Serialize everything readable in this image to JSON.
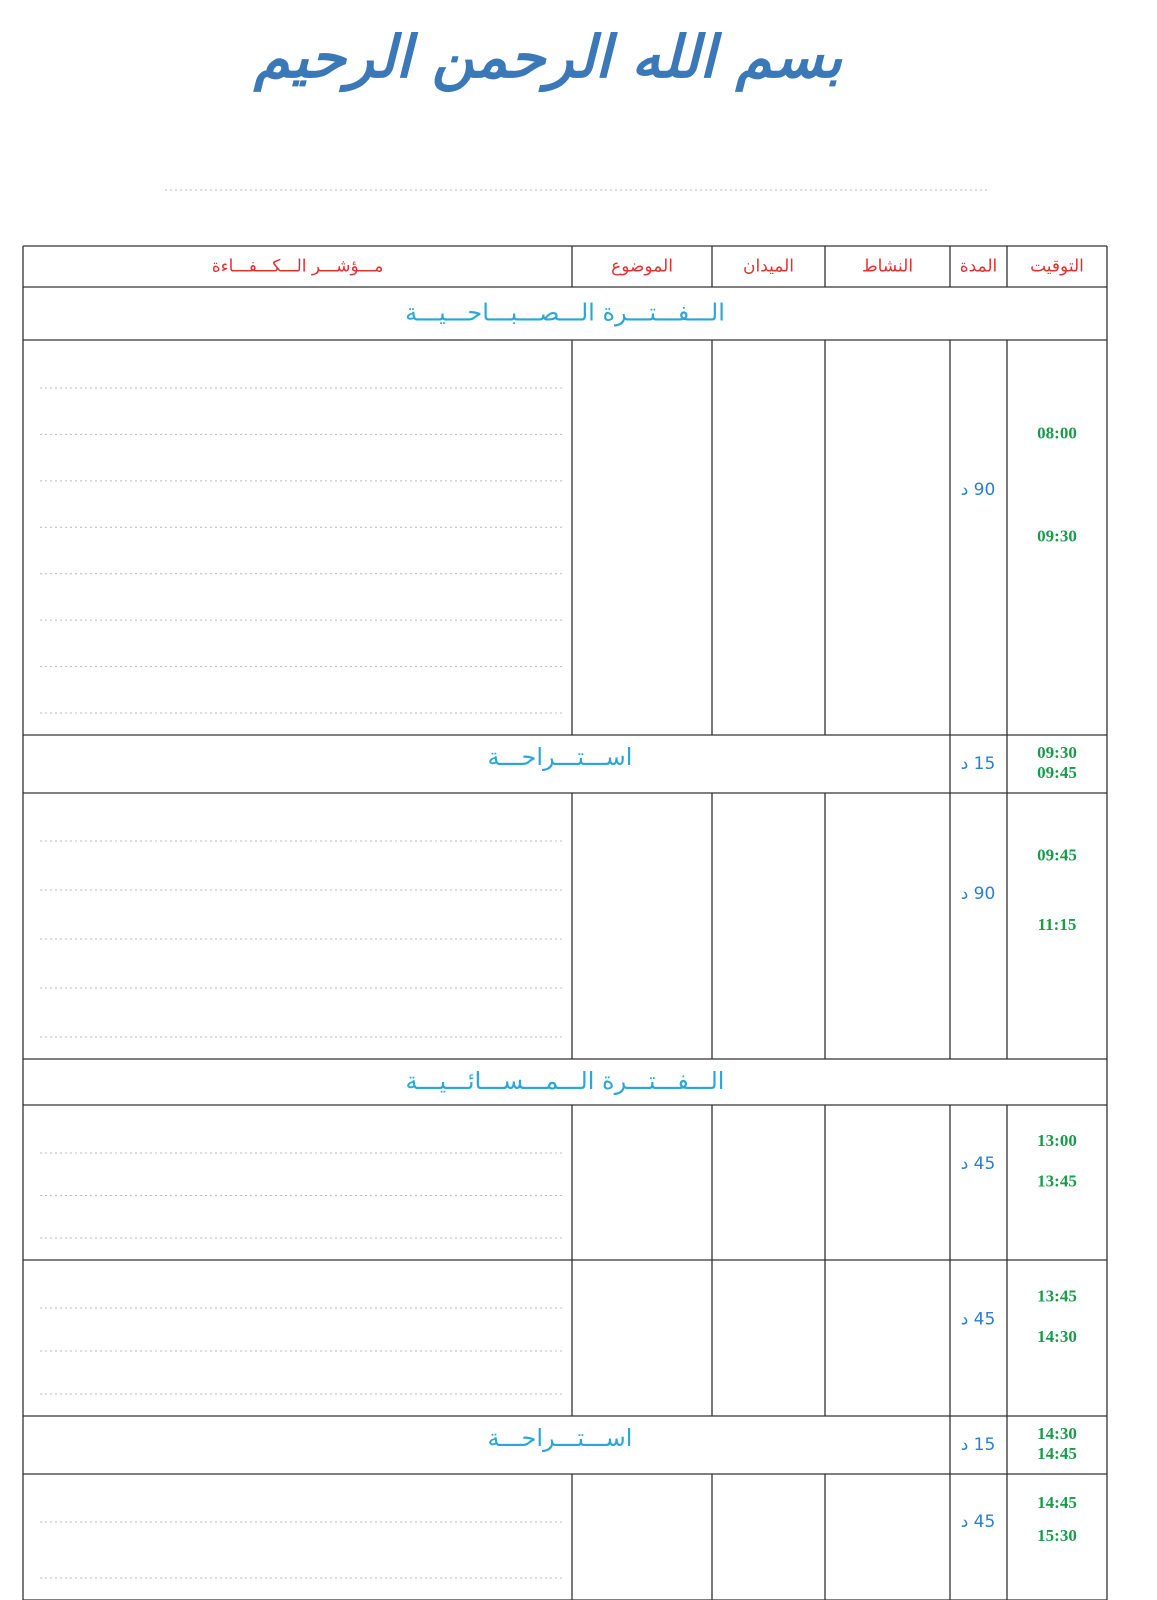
{
  "header": {
    "basmala": "بسم الله الرحمن الرحيم"
  },
  "table": {
    "headers": [
      "التوقيت",
      "المدة",
      "النشاط",
      "الميدان",
      "الموضوع",
      "مـــؤشـــر الـــكـــفـــاءة"
    ],
    "rows": [
      {
        "label": "الـــفـــتـــرة الـــصـــبـــاحـــيـــة"
      },
      {
        "times": [
          "08:00",
          "09:30"
        ],
        "duration": "90 د"
      },
      {
        "label": "اســـتـــراحـــة",
        "times": [
          "09:30",
          "09:45"
        ],
        "duration": "15 د"
      },
      {
        "times": [
          "09:45",
          "11:15"
        ],
        "duration": "90 د"
      },
      {
        "label": "الـــفـــتـــرة الـــمـــســـائـــيـــة"
      },
      {
        "times": [
          "13:00",
          "13:45"
        ],
        "duration": "45 د"
      },
      {
        "times": [
          "13:45",
          "14:30"
        ],
        "duration": "45 د"
      },
      {
        "label": "اســـتـــراحـــة",
        "times": [
          "14:30",
          "14:45"
        ],
        "duration": "15 د"
      },
      {
        "times": [
          "14:45",
          "15:30"
        ],
        "duration": "45 د"
      }
    ]
  }
}
